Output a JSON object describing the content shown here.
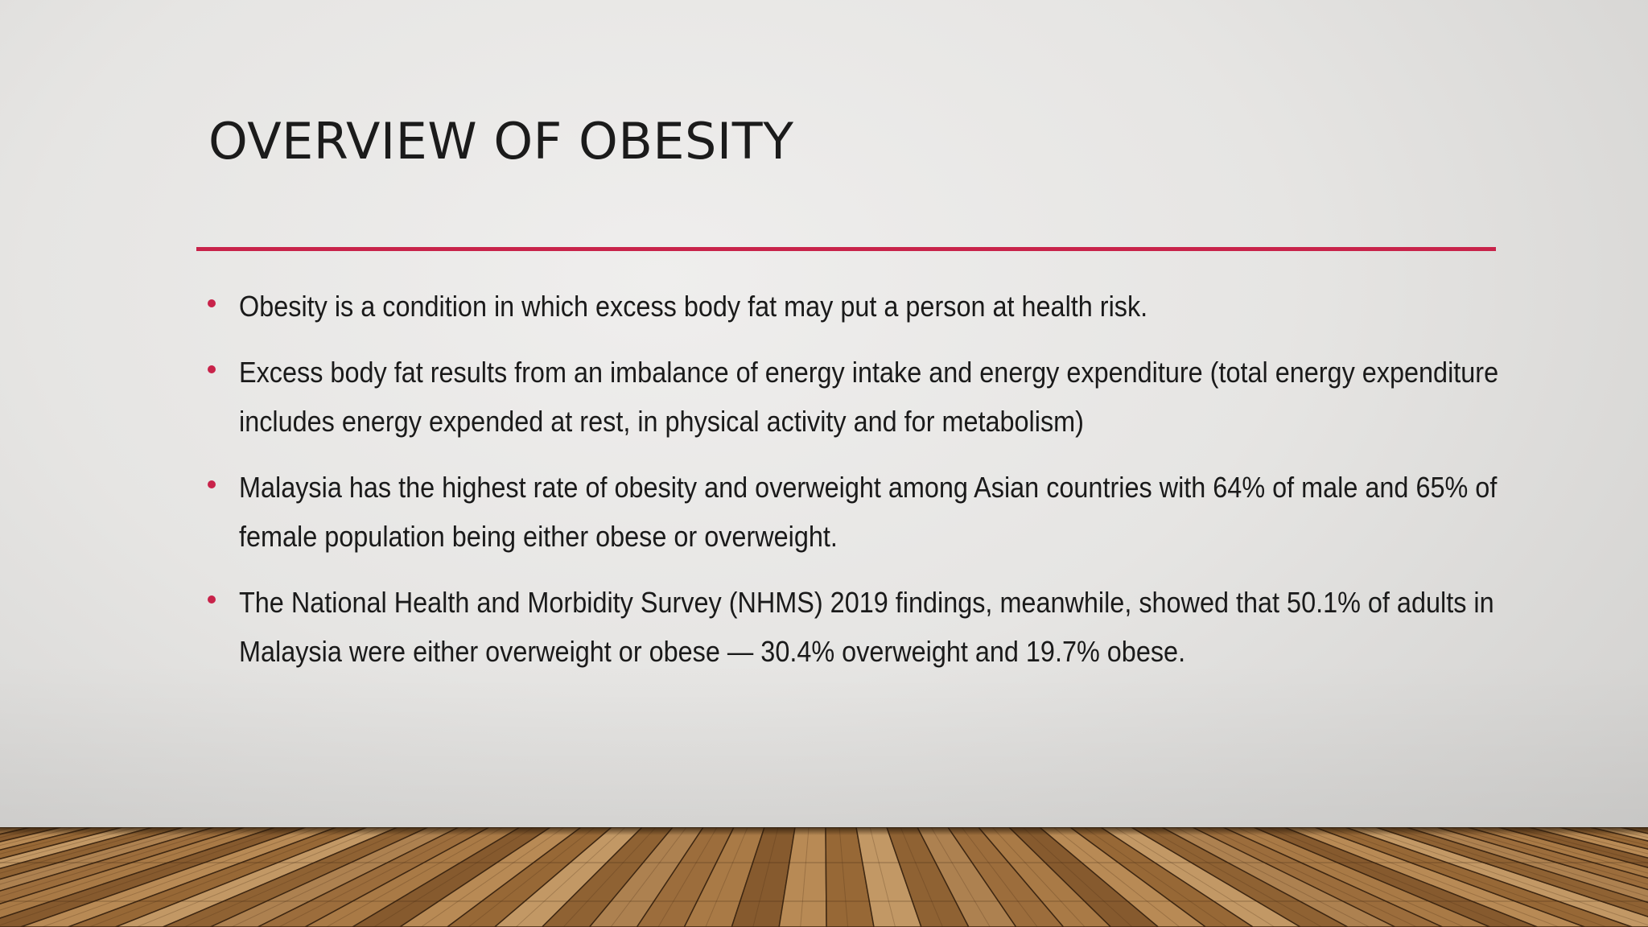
{
  "slide": {
    "title": "OVERVIEW OF OBESITY",
    "accent_color": "#c8234a",
    "background": "light grey wall with wooden plank floor",
    "bullets": [
      "Obesity is a condition in which excess body fat may put a person at health risk.",
      "Excess body fat results from an imbalance of energy intake and energy expenditure (total energy expenditure includes energy expended at rest, in physical activity and for metabolism)",
      "Malaysia has the highest rate of obesity and overweight among Asian countries with 64% of male and 65% of female population being either obese or overweight.",
      "The National Health and Morbidity Survey (NHMS) 2019 findings, meanwhile, showed that 50.1% of adults in Malaysia were either overweight or obese — 30.4% overweight and 19.7% obese."
    ]
  }
}
